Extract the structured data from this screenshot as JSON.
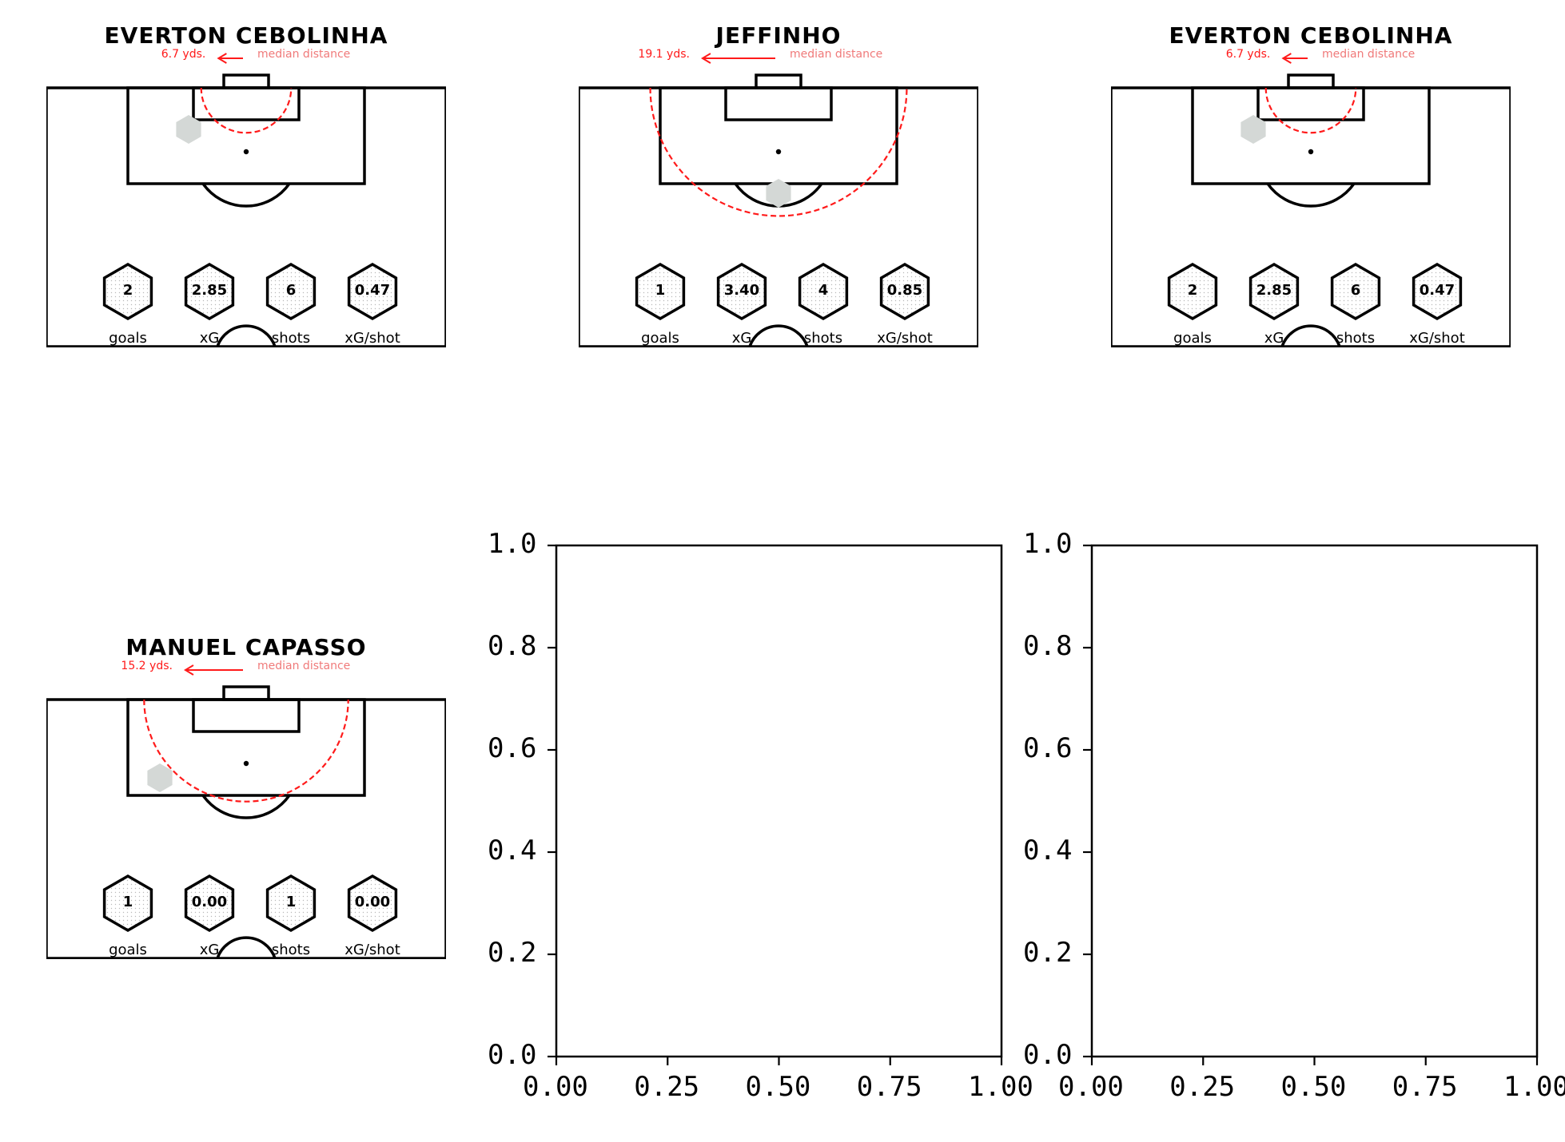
{
  "stat_labels": [
    "goals",
    "xG",
    "shots",
    "xG/shot"
  ],
  "median_label": "median distance",
  "colors": {
    "median_line": "#ff1a1a",
    "median_label": "#f07a7a",
    "shot_hex": "#d4d8d6",
    "pitch_line": "#000000"
  },
  "players": [
    {
      "name": "EVERTON CEBOLINHA",
      "median_distance": "6.7 yds.",
      "median_yds": 6.7,
      "stats": [
        "2",
        "2.85",
        "6",
        "0.47"
      ]
    },
    {
      "name": "JEFFINHO",
      "median_distance": "19.1 yds.",
      "median_yds": 19.1,
      "stats": [
        "1",
        "3.40",
        "4",
        "0.85"
      ]
    },
    {
      "name": "EVERTON CEBOLINHA",
      "median_distance": "6.7 yds.",
      "median_yds": 6.7,
      "stats": [
        "2",
        "2.85",
        "6",
        "0.47"
      ]
    },
    {
      "name": "MANUEL CAPASSO",
      "median_distance": "15.2 yds.",
      "median_yds": 15.2,
      "stats": [
        "1",
        "0.00",
        "1",
        "0.00"
      ]
    }
  ],
  "chart_data": [
    {
      "type": "scatter",
      "title": "",
      "xlabel": "",
      "ylabel": "",
      "xlim": [
        0,
        1
      ],
      "ylim": [
        0,
        1
      ],
      "xticks": [
        "0.00",
        "0.25",
        "0.50",
        "0.75",
        "1.00"
      ],
      "yticks": [
        "0.0",
        "0.2",
        "0.4",
        "0.6",
        "0.8",
        "1.0"
      ],
      "series": []
    },
    {
      "type": "scatter",
      "title": "",
      "xlabel": "",
      "ylabel": "",
      "xlim": [
        0,
        1
      ],
      "ylim": [
        0,
        1
      ],
      "xticks": [
        "0.00",
        "0.25",
        "0.50",
        "0.75",
        "1.00"
      ],
      "yticks": [
        "0.0",
        "0.2",
        "0.4",
        "0.6",
        "0.8",
        "1.0"
      ],
      "series": []
    }
  ]
}
